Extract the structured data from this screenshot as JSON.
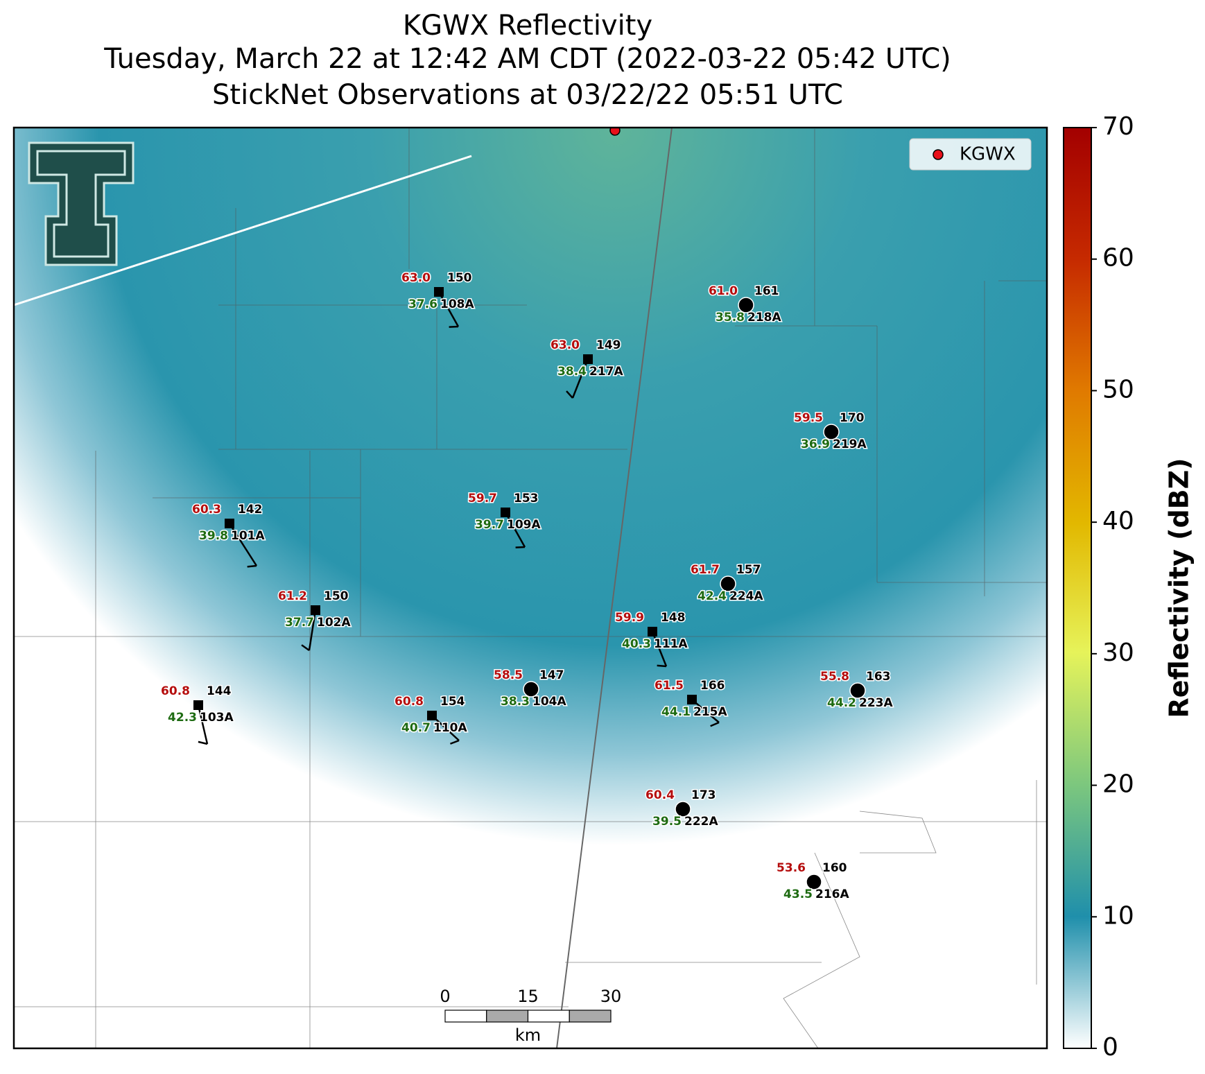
{
  "header": {
    "title": "KGWX Reflectivity",
    "subtitle": "Tuesday, March 22 at 12:42 AM CDT (2022-03-22 05:42 UTC)",
    "subtitle2": "StickNet Observations at 03/22/22 05:51 UTC"
  },
  "legend": {
    "label": "KGWX",
    "color": "#e8101a"
  },
  "colorbar": {
    "label": "Reflectivity (dBZ)",
    "lim": [
      0,
      70
    ],
    "ticks": [
      0,
      10,
      20,
      30,
      40,
      50,
      60,
      70
    ]
  },
  "scale_bar": {
    "ticks": [
      0,
      15,
      30
    ],
    "unit": "km"
  },
  "stations": [
    {
      "id": "108A",
      "temperature": "63.0",
      "dewpoint": "37.6",
      "pressure": 150,
      "marker": "square"
    },
    {
      "id": "217A",
      "temperature": "63.0",
      "dewpoint": "38.4",
      "pressure": 149,
      "marker": "square"
    },
    {
      "id": "218A",
      "temperature": "61.0",
      "dewpoint": "35.8",
      "pressure": 161,
      "marker": "circle"
    },
    {
      "id": "219A",
      "temperature": "59.5",
      "dewpoint": "36.9",
      "pressure": 170,
      "marker": "circle"
    },
    {
      "id": "101A",
      "temperature": "60.3",
      "dewpoint": "39.8",
      "pressure": 142,
      "marker": "square"
    },
    {
      "id": "109A",
      "temperature": "59.7",
      "dewpoint": "39.7",
      "pressure": 153,
      "marker": "square"
    },
    {
      "id": "224A",
      "temperature": "61.7",
      "dewpoint": "42.4",
      "pressure": 157,
      "marker": "circle"
    },
    {
      "id": "102A",
      "temperature": "61.2",
      "dewpoint": "37.7",
      "pressure": 150,
      "marker": "square"
    },
    {
      "id": "111A",
      "temperature": "59.9",
      "dewpoint": "40.3",
      "pressure": 148,
      "marker": "square"
    },
    {
      "id": "104A",
      "temperature": "58.5",
      "dewpoint": "38.3",
      "pressure": 147,
      "marker": "circle"
    },
    {
      "id": "215A",
      "temperature": "61.5",
      "dewpoint": "44.1",
      "pressure": 166,
      "marker": "square"
    },
    {
      "id": "223A",
      "temperature": "55.8",
      "dewpoint": "44.2",
      "pressure": 163,
      "marker": "circle"
    },
    {
      "id": "103A",
      "temperature": "60.8",
      "dewpoint": "42.3",
      "pressure": 144,
      "marker": "square"
    },
    {
      "id": "110A",
      "temperature": "60.8",
      "dewpoint": "40.7",
      "pressure": 154,
      "marker": "square"
    },
    {
      "id": "222A",
      "temperature": "60.4",
      "dewpoint": "39.5",
      "pressure": 173,
      "marker": "circle"
    },
    {
      "id": "216A",
      "temperature": "53.6",
      "dewpoint": "43.5",
      "pressure": 160,
      "marker": "circle"
    }
  ]
}
